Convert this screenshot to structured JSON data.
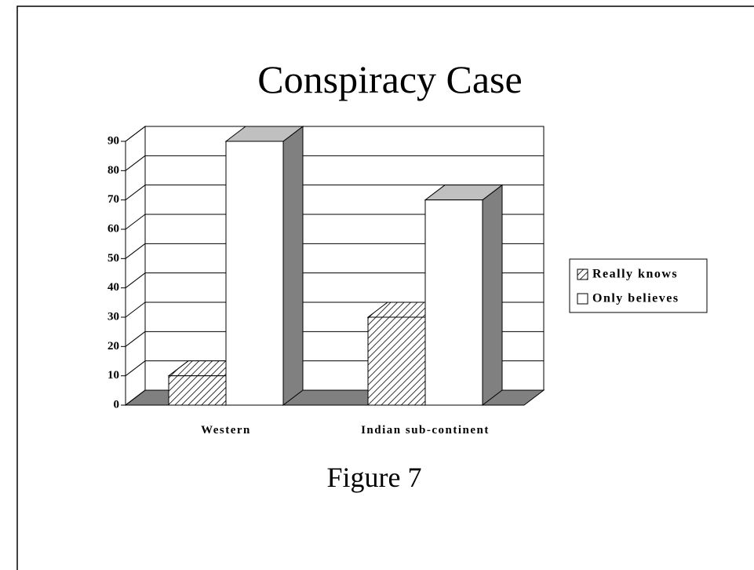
{
  "chart_data": {
    "type": "bar3d",
    "title": "Conspiracy Case",
    "caption": "Figure 7",
    "categories": [
      "Western",
      "Indian sub-continent"
    ],
    "series": [
      {
        "name": "Really knows",
        "color": "#ffffff",
        "pattern": "hatch",
        "values": [
          10,
          30
        ]
      },
      {
        "name": "Only believes",
        "color": "#ffffff",
        "pattern": "none",
        "values": [
          90,
          70
        ]
      }
    ],
    "ylim": [
      0,
      90
    ],
    "yticks": [
      0,
      10,
      20,
      30,
      40,
      50,
      60,
      70,
      80,
      90
    ],
    "grid": true,
    "legend": "right"
  }
}
